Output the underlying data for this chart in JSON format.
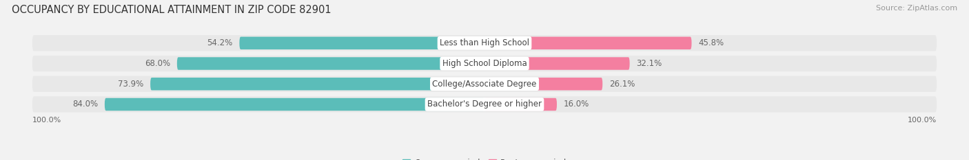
{
  "title": "OCCUPANCY BY EDUCATIONAL ATTAINMENT IN ZIP CODE 82901",
  "source": "Source: ZipAtlas.com",
  "categories": [
    "Less than High School",
    "High School Diploma",
    "College/Associate Degree",
    "Bachelor's Degree or higher"
  ],
  "owner_pct": [
    54.2,
    68.0,
    73.9,
    84.0
  ],
  "renter_pct": [
    45.8,
    32.1,
    26.1,
    16.0
  ],
  "owner_color": "#5bbdb9",
  "renter_color": "#f47fa0",
  "background_color": "#f2f2f2",
  "bar_bg_color": "#e8e8e8",
  "title_fontsize": 10.5,
  "source_fontsize": 8,
  "pct_label_fontsize": 8.5,
  "cat_label_fontsize": 8.5,
  "axis_label_fontsize": 8,
  "legend_fontsize": 8.5,
  "bar_height": 0.62,
  "x_left_label": "100.0%",
  "x_right_label": "100.0%"
}
